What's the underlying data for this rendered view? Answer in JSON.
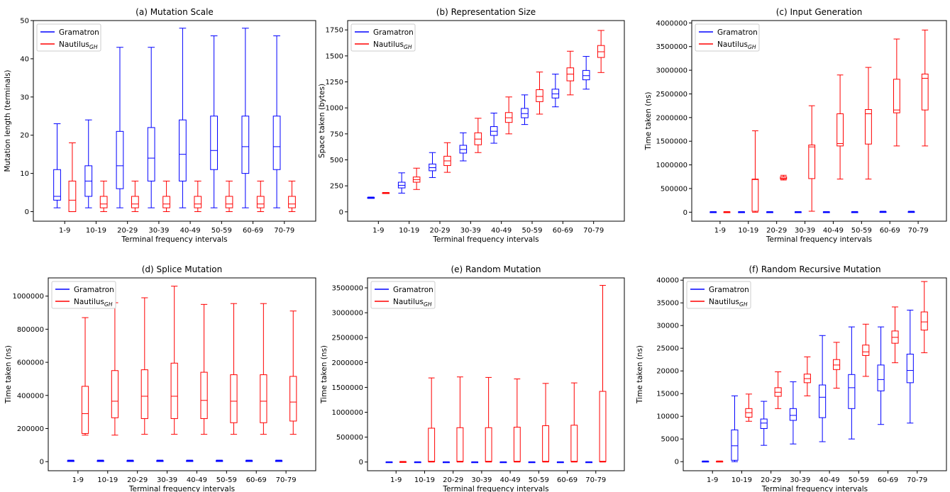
{
  "colors": {
    "gramatron": "#0000ff",
    "nautilus": "#ff0000",
    "axis": "#000000",
    "legend_border": "#cccccc"
  },
  "chart_data": [
    {
      "id": "a",
      "type": "box",
      "title": "(a) Mutation Scale",
      "xlabel": "Terminal frequency intervals",
      "ylabel": "Mutation length (terminals)",
      "ylim": [
        -2.5,
        50
      ],
      "yticks": [
        0,
        10,
        20,
        30,
        40,
        50
      ],
      "ytick_labels": [
        "0",
        "10",
        "20",
        "30",
        "40",
        "50"
      ],
      "categories": [
        "1-9",
        "10-19",
        "20-29",
        "30-39",
        "40-49",
        "50-59",
        "60-69",
        "70-79"
      ],
      "legend": {
        "position": "top-left",
        "entries": [
          {
            "text": "Gramatron",
            "sub": ""
          },
          {
            "text": "Nautilus",
            "sub": "GH"
          }
        ]
      },
      "series": [
        {
          "name": "Gramatron",
          "boxes": [
            [
              1,
              3,
              4,
              11,
              23
            ],
            [
              1,
              4,
              8,
              12,
              24
            ],
            [
              1,
              6,
              12,
              21,
              43
            ],
            [
              1,
              8,
              14,
              22,
              43
            ],
            [
              1,
              8,
              15,
              24,
              48
            ],
            [
              1,
              11,
              16,
              25,
              46
            ],
            [
              1,
              10,
              17,
              25,
              48
            ],
            [
              1,
              11,
              17,
              25,
              46
            ]
          ]
        },
        {
          "name": "Nautilus GH",
          "boxes": [
            [
              0,
              0,
              3,
              8,
              18
            ],
            [
              0,
              1,
              2,
              4,
              8
            ],
            [
              0,
              1,
              2,
              4,
              8
            ],
            [
              0,
              1,
              2,
              4,
              8
            ],
            [
              0,
              1,
              2,
              4,
              8
            ],
            [
              0,
              1,
              2,
              4,
              8
            ],
            [
              0,
              1,
              2,
              4,
              8
            ],
            [
              0,
              1,
              2,
              4,
              8
            ]
          ]
        }
      ]
    },
    {
      "id": "b",
      "type": "box",
      "title": "(b) Representation Size",
      "xlabel": "Terminal frequency intervals",
      "ylabel": "Space taken (bytes)",
      "ylim": [
        -90,
        1840
      ],
      "yticks": [
        0,
        250,
        500,
        750,
        1000,
        1250,
        1500,
        1750
      ],
      "ytick_labels": [
        "0",
        "250",
        "500",
        "750",
        "1000",
        "1250",
        "1500",
        "1750"
      ],
      "categories": [
        "1-9",
        "10-19",
        "20-29",
        "30-39",
        "40-49",
        "50-59",
        "60-69",
        "70-79"
      ],
      "legend": {
        "position": "top-left",
        "entries": [
          {
            "text": "Gramatron",
            "sub": ""
          },
          {
            "text": "Nautilus",
            "sub": "GH"
          }
        ]
      },
      "series": [
        {
          "name": "Gramatron",
          "boxes": [
            [
              130,
              133,
              135,
              138,
              142
            ],
            [
              180,
              230,
              255,
              285,
              375
            ],
            [
              330,
              395,
              425,
              460,
              570
            ],
            [
              490,
              565,
              600,
              640,
              760
            ],
            [
              660,
              735,
              775,
              820,
              950
            ],
            [
              840,
              905,
              945,
              995,
              1125
            ],
            [
              1010,
              1095,
              1135,
              1180,
              1325
            ],
            [
              1180,
              1270,
              1310,
              1360,
              1495
            ]
          ]
        },
        {
          "name": "Nautilus GH",
          "boxes": [
            [
              178,
              180,
              182,
              184,
              186
            ],
            [
              215,
              285,
              310,
              335,
              420
            ],
            [
              380,
              445,
              490,
              535,
              665
            ],
            [
              570,
              645,
              700,
              760,
              900
            ],
            [
              750,
              860,
              905,
              955,
              1105
            ],
            [
              940,
              1060,
              1110,
              1175,
              1345
            ],
            [
              1125,
              1260,
              1325,
              1385,
              1545
            ],
            [
              1340,
              1485,
              1540,
              1600,
              1745
            ]
          ]
        }
      ]
    },
    {
      "id": "c",
      "type": "box",
      "title": "(c) Input Generation",
      "xlabel": "Terminal frequency intervals",
      "ylabel": "Time taken (ns)",
      "ylim": [
        -190000,
        4050000
      ],
      "yticks": [
        0,
        500000,
        1000000,
        1500000,
        2000000,
        2500000,
        3000000,
        3500000,
        4000000
      ],
      "ytick_labels": [
        "0",
        "500000",
        "1000000",
        "1500000",
        "2000000",
        "2500000",
        "3000000",
        "3500000",
        "4000000"
      ],
      "categories": [
        "1-9",
        "10-19",
        "20-29",
        "30-39",
        "40-49",
        "50-59",
        "60-69",
        "70-79"
      ],
      "legend": {
        "position": "top-left",
        "entries": [
          {
            "text": "Gramatron",
            "sub": ""
          },
          {
            "text": "Nautilus",
            "sub": "GH"
          }
        ]
      },
      "series": [
        {
          "name": "Gramatron",
          "boxes": [
            [
              0,
              2000,
              5000,
              8000,
              12000
            ],
            [
              0,
              2000,
              5000,
              8000,
              12000
            ],
            [
              0,
              2000,
              5000,
              8000,
              12000
            ],
            [
              0,
              2000,
              5000,
              8000,
              12000
            ],
            [
              0,
              2000,
              5000,
              8000,
              12000
            ],
            [
              0,
              2000,
              5000,
              8000,
              14000
            ],
            [
              0,
              4000,
              8000,
              12000,
              20000
            ],
            [
              0,
              4000,
              8000,
              12000,
              20000
            ]
          ]
        },
        {
          "name": "Nautilus GH",
          "boxes": [
            [
              0,
              2000,
              5000,
              8000,
              12000
            ],
            [
              0,
              20000,
              690000,
              700000,
              1720000
            ],
            [
              680000,
              700000,
              720000,
              750000,
              780000
            ],
            [
              20000,
              710000,
              1380000,
              1420000,
              2250000
            ],
            [
              700000,
              1400000,
              1450000,
              2080000,
              2900000
            ],
            [
              700000,
              1440000,
              2080000,
              2170000,
              3060000
            ],
            [
              1400000,
              2100000,
              2160000,
              2810000,
              3660000
            ],
            [
              1400000,
              2160000,
              2830000,
              2920000,
              3850000
            ]
          ]
        }
      ]
    },
    {
      "id": "d",
      "type": "box",
      "title": "(d) Splice Mutation",
      "xlabel": "Terminal frequency intervals",
      "ylabel": "Time taken (ns)",
      "ylim": [
        -55000,
        1110000
      ],
      "yticks": [
        0,
        200000,
        400000,
        600000,
        800000,
        1000000
      ],
      "ytick_labels": [
        "0",
        "200000",
        "400000",
        "600000",
        "800000",
        "1000000"
      ],
      "categories": [
        "1-9",
        "10-19",
        "20-29",
        "30-39",
        "40-49",
        "50-59",
        "60-69",
        "70-79"
      ],
      "legend": {
        "position": "top-left",
        "entries": [
          {
            "text": "Gramatron",
            "sub": ""
          },
          {
            "text": "Nautilus",
            "sub": "GH"
          }
        ]
      },
      "series": [
        {
          "name": "Gramatron",
          "boxes": [
            [
              1000,
              3000,
              4000,
              6000,
              9000
            ],
            [
              1000,
              3000,
              4000,
              6000,
              9000
            ],
            [
              1000,
              3000,
              4000,
              6000,
              9000
            ],
            [
              1000,
              3000,
              4000,
              6000,
              9000
            ],
            [
              1000,
              3000,
              4000,
              6000,
              9000
            ],
            [
              1000,
              3000,
              4000,
              6000,
              9000
            ],
            [
              1000,
              3000,
              4000,
              6000,
              9000
            ],
            [
              1000,
              3000,
              4000,
              6000,
              9000
            ]
          ]
        },
        {
          "name": "Nautilus GH",
          "boxes": [
            [
              160000,
              170000,
              290000,
              455000,
              870000
            ],
            [
              160000,
              265000,
              365000,
              550000,
              960000
            ],
            [
              165000,
              260000,
              395000,
              555000,
              990000
            ],
            [
              165000,
              260000,
              395000,
              595000,
              1060000
            ],
            [
              165000,
              260000,
              370000,
              540000,
              950000
            ],
            [
              165000,
              235000,
              365000,
              525000,
              955000
            ],
            [
              165000,
              235000,
              365000,
              525000,
              955000
            ],
            [
              165000,
              245000,
              360000,
              515000,
              910000
            ]
          ]
        }
      ]
    },
    {
      "id": "e",
      "type": "box",
      "title": "(e) Random Mutation",
      "xlabel": "Terminal frequency intervals",
      "ylabel": "Time taken (ns)",
      "ylim": [
        -175000,
        3700000
      ],
      "yticks": [
        0,
        500000,
        1000000,
        1500000,
        2000000,
        2500000,
        3000000,
        3500000
      ],
      "ytick_labels": [
        "0",
        "500000",
        "1000000",
        "1500000",
        "2000000",
        "2500000",
        "3000000",
        "3500000"
      ],
      "categories": [
        "1-9",
        "10-19",
        "20-29",
        "30-39",
        "40-49",
        "50-59",
        "60-69",
        "70-79"
      ],
      "legend": {
        "position": "top-left",
        "entries": [
          {
            "text": "Gramatron",
            "sub": ""
          },
          {
            "text": "Nautilus",
            "sub": "GH"
          }
        ]
      },
      "series": [
        {
          "name": "Gramatron",
          "boxes": [
            [
              0,
              1000,
              2000,
              3000,
              5000
            ],
            [
              0,
              1000,
              2000,
              3000,
              5000
            ],
            [
              0,
              1000,
              2000,
              3000,
              5000
            ],
            [
              0,
              1000,
              2000,
              3000,
              5000
            ],
            [
              0,
              1000,
              2000,
              3000,
              5000
            ],
            [
              0,
              1000,
              2000,
              3000,
              5000
            ],
            [
              0,
              1000,
              2000,
              3000,
              5000
            ],
            [
              0,
              1000,
              2000,
              3000,
              5000
            ]
          ]
        },
        {
          "name": "Nautilus GH",
          "boxes": [
            [
              0,
              2000,
              5000,
              8000,
              12000
            ],
            [
              0,
              8000,
              15000,
              680000,
              1690000
            ],
            [
              0,
              8000,
              15000,
              690000,
              1710000
            ],
            [
              0,
              8000,
              15000,
              690000,
              1700000
            ],
            [
              0,
              8000,
              15000,
              700000,
              1670000
            ],
            [
              0,
              8000,
              15000,
              730000,
              1580000
            ],
            [
              0,
              8000,
              15000,
              740000,
              1590000
            ],
            [
              0,
              8000,
              15000,
              1420000,
              3550000
            ]
          ]
        }
      ]
    },
    {
      "id": "f",
      "type": "box",
      "title": "(f) Random Recursive Mutation",
      "xlabel": "Terminal frequency intervals",
      "ylabel": "Time taken (ns)",
      "ylim": [
        -2000,
        40500
      ],
      "yticks": [
        0,
        5000,
        10000,
        15000,
        20000,
        25000,
        30000,
        35000,
        40000
      ],
      "ytick_labels": [
        "0",
        "5000",
        "10000",
        "15000",
        "20000",
        "25000",
        "30000",
        "35000",
        "40000"
      ],
      "categories": [
        "1-9",
        "10-19",
        "20-29",
        "30-39",
        "40-49",
        "50-59",
        "60-69",
        "70-79"
      ],
      "legend": {
        "position": "top-left",
        "entries": [
          {
            "text": "Gramatron",
            "sub": ""
          },
          {
            "text": "Nautilus",
            "sub": "GH"
          }
        ]
      },
      "series": [
        {
          "name": "Gramatron",
          "boxes": [
            [
              0,
              0,
              50,
              100,
              150
            ],
            [
              0,
              300,
              3500,
              7000,
              14500
            ],
            [
              3600,
              7300,
              8500,
              9400,
              13300
            ],
            [
              3900,
              9100,
              10200,
              11700,
              17600
            ],
            [
              4400,
              9700,
              14200,
              16900,
              27800
            ],
            [
              5000,
              11700,
              16300,
              19200,
              29700
            ],
            [
              8200,
              15600,
              18100,
              21300,
              29700
            ],
            [
              8500,
              17400,
              20100,
              23700,
              33400
            ]
          ]
        },
        {
          "name": "Nautilus GH",
          "boxes": [
            [
              0,
              0,
              50,
              100,
              150
            ],
            [
              8900,
              9800,
              10800,
              11700,
              14900
            ],
            [
              11700,
              14400,
              15300,
              16300,
              19800
            ],
            [
              14500,
              17400,
              18300,
              19300,
              23100
            ],
            [
              16200,
              20300,
              21300,
              22500,
              26300
            ],
            [
              18800,
              23400,
              24200,
              25700,
              30300
            ],
            [
              21800,
              26100,
              27400,
              28800,
              34100
            ],
            [
              24000,
              29000,
              30800,
              33000,
              39700
            ]
          ]
        }
      ]
    }
  ]
}
